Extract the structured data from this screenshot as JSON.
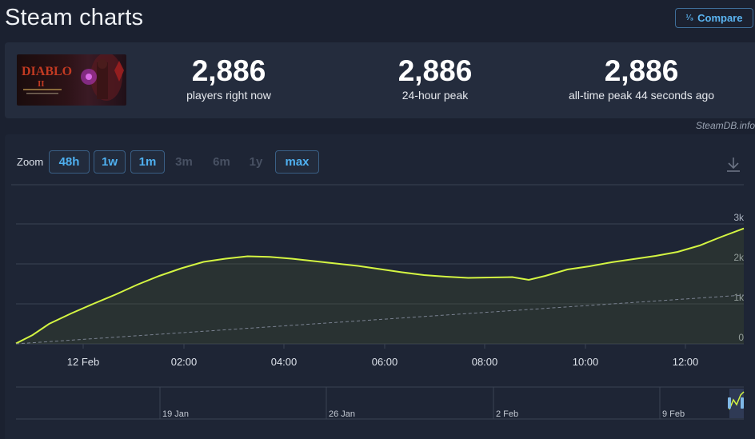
{
  "header": {
    "title": "Steam charts",
    "compare_label": "Compare",
    "compare_icon": "fraction-icon"
  },
  "stats": [
    {
      "value": "2,886",
      "label": "players right now"
    },
    {
      "value": "2,886",
      "label": "24-hour peak"
    },
    {
      "value": "2,886",
      "label": "all-time peak 44 seconds ago"
    }
  ],
  "credit": "SteamDB.info",
  "zoom": {
    "label": "Zoom",
    "options": [
      {
        "label": "48h",
        "enabled": true
      },
      {
        "label": "1w",
        "enabled": true
      },
      {
        "label": "1m",
        "enabled": true
      },
      {
        "label": "3m",
        "enabled": false
      },
      {
        "label": "6m",
        "enabled": false
      },
      {
        "label": "1y",
        "enabled": false
      },
      {
        "label": "max",
        "enabled": true
      }
    ]
  },
  "colors": {
    "line": "#d4f542",
    "grid": "#3a4252",
    "avg": "#7a8291"
  },
  "chart_data": {
    "type": "line",
    "x_ticks": [
      "12 Feb",
      "02:00",
      "04:00",
      "06:00",
      "08:00",
      "10:00",
      "12:00"
    ],
    "y_ticks": [
      "0",
      "1k",
      "2k",
      "3k"
    ],
    "ylim": [
      0,
      3000
    ],
    "series": [
      {
        "name": "",
        "x": [
          0,
          0.3,
          0.6,
          1,
          1.4,
          1.8,
          2.2,
          2.6,
          3,
          3.4,
          3.8,
          4.2,
          4.6,
          5,
          5.4,
          5.8,
          6.2,
          6.6,
          7,
          7.4,
          7.8,
          8.2,
          8.6,
          9,
          9.3,
          9.6,
          10,
          10.4,
          10.8,
          11.2,
          11.6,
          12,
          12.4,
          12.8,
          13.2
        ],
        "values": [
          10,
          220,
          500,
          760,
          1000,
          1230,
          1480,
          1700,
          1890,
          2050,
          2130,
          2190,
          2175,
          2130,
          2070,
          2010,
          1950,
          1870,
          1790,
          1720,
          1680,
          1650,
          1660,
          1670,
          1600,
          1700,
          1860,
          1940,
          2040,
          2120,
          2200,
          2300,
          2460,
          2680,
          2886
        ]
      },
      {
        "name": "",
        "x": [
          0,
          13.2
        ],
        "values": [
          0,
          1220
        ],
        "style": "dashed"
      }
    ],
    "navigator": {
      "ticks": [
        "19 Jan",
        "26 Jan",
        "2 Feb",
        "9 Feb"
      ]
    }
  }
}
